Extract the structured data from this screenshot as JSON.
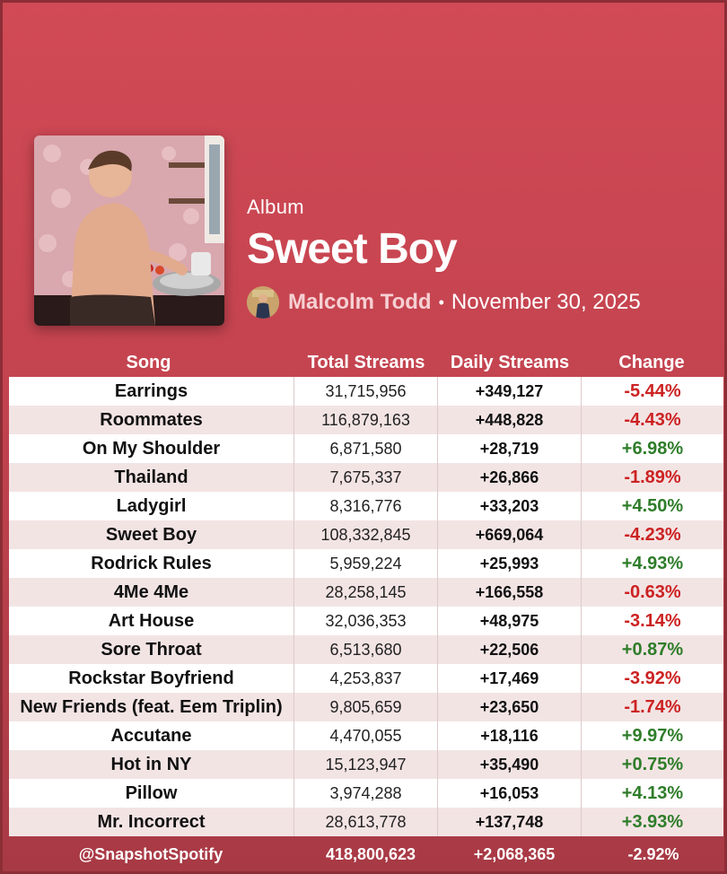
{
  "album": {
    "kind": "Album",
    "title": "Sweet Boy",
    "artist": "Malcolm Todd",
    "separator": "•",
    "date": "November 30, 2025"
  },
  "columns": {
    "song": "Song",
    "total": "Total Streams",
    "daily": "Daily Streams",
    "change": "Change"
  },
  "rows": [
    {
      "song": "Earrings",
      "total": "31,715,956",
      "daily": "+349,127",
      "change": "-5.44%"
    },
    {
      "song": "Roommates",
      "total": "116,879,163",
      "daily": "+448,828",
      "change": "-4.43%"
    },
    {
      "song": "On My Shoulder",
      "total": "6,871,580",
      "daily": "+28,719",
      "change": "+6.98%"
    },
    {
      "song": "Thailand",
      "total": "7,675,337",
      "daily": "+26,866",
      "change": "-1.89%"
    },
    {
      "song": "Ladygirl",
      "total": "8,316,776",
      "daily": "+33,203",
      "change": "+4.50%"
    },
    {
      "song": "Sweet Boy",
      "total": "108,332,845",
      "daily": "+669,064",
      "change": "-4.23%"
    },
    {
      "song": "Rodrick Rules",
      "total": "5,959,224",
      "daily": "+25,993",
      "change": "+4.93%"
    },
    {
      "song": "4Me 4Me",
      "total": "28,258,145",
      "daily": "+166,558",
      "change": "-0.63%"
    },
    {
      "song": "Art House",
      "total": "32,036,353",
      "daily": "+48,975",
      "change": "-3.14%"
    },
    {
      "song": "Sore Throat",
      "total": "6,513,680",
      "daily": "+22,506",
      "change": "+0.87%"
    },
    {
      "song": "Rockstar Boyfriend",
      "total": "4,253,837",
      "daily": "+17,469",
      "change": "-3.92%"
    },
    {
      "song": "New Friends (feat. Eem Triplin)",
      "total": "9,805,659",
      "daily": "+23,650",
      "change": "-1.74%"
    },
    {
      "song": "Accutane",
      "total": "4,470,055",
      "daily": "+18,116",
      "change": "+9.97%"
    },
    {
      "song": "Hot in NY",
      "total": "15,123,947",
      "daily": "+35,490",
      "change": "+0.75%"
    },
    {
      "song": "Pillow",
      "total": "3,974,288",
      "daily": "+16,053",
      "change": "+4.13%"
    },
    {
      "song": "Mr. Incorrect",
      "total": "28,613,778",
      "daily": "+137,748",
      "change": "+3.93%"
    }
  ],
  "footer": {
    "handle": "@SnapshotSpotify",
    "total": "418,800,623",
    "daily": "+2,068,365",
    "change": "-2.92%"
  },
  "colors": {
    "background": "#c54450",
    "negative": "#cc2222",
    "positive": "#2f7d2a"
  }
}
